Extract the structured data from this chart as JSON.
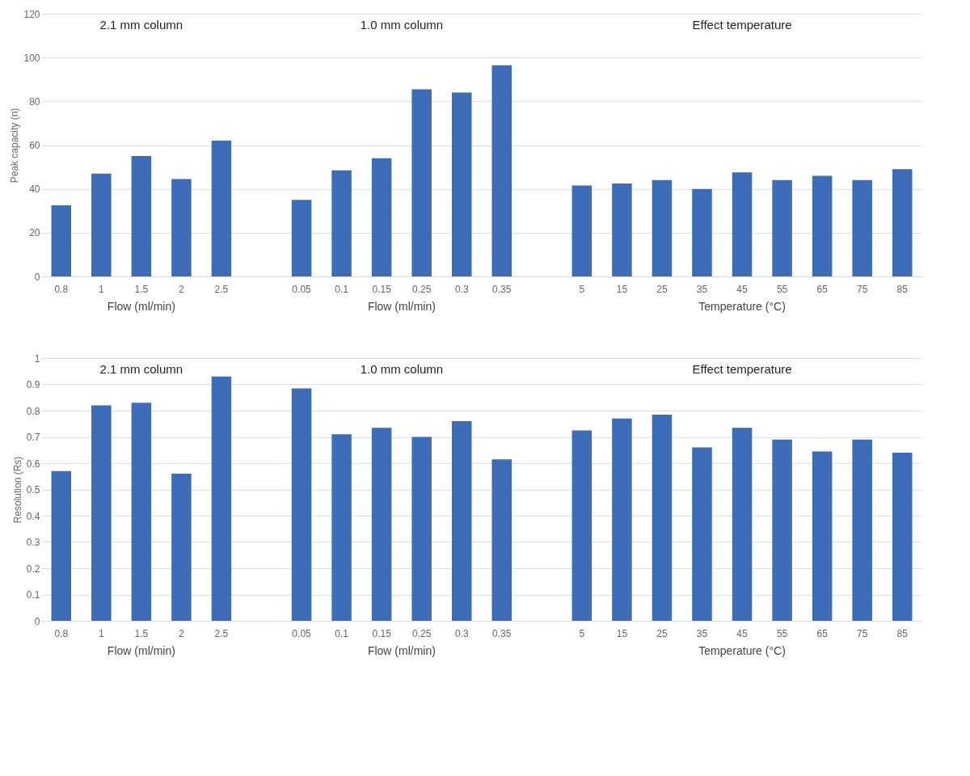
{
  "chart_data": [
    {
      "type": "bar",
      "ylabel": "Peak capacity (n)",
      "categories": [
        "0.8",
        "1",
        "1.5",
        "2",
        "2.5",
        null,
        "0.05",
        "0.1",
        "0.15",
        "0.25",
        "0.3",
        "0.35",
        null,
        "5",
        "15",
        "25",
        "35",
        "45",
        "55",
        "65",
        "75",
        "85"
      ],
      "values": [
        32.5,
        47,
        55,
        44.5,
        62,
        null,
        35,
        48.5,
        54,
        85.5,
        84,
        96.5,
        null,
        41.5,
        42.5,
        44,
        40,
        47.5,
        44,
        46,
        44,
        49
      ],
      "color": "#3d6cb9",
      "ylim": [
        0,
        120
      ],
      "yticks": [
        0,
        20,
        40,
        60,
        80,
        100,
        120
      ],
      "grid": "y",
      "annotations": [
        "2.1 mm column",
        "1.0 mm column",
        "Effect temperature",
        "Flow (ml/min)",
        "Flow (ml/min)",
        "Temperature (°C)"
      ]
    },
    {
      "type": "bar",
      "ylabel": "Resolution (Rs)",
      "categories": [
        "0.8",
        "1",
        "1.5",
        "2",
        "2.5",
        null,
        "0.05",
        "0.1",
        "0.15",
        "0.25",
        "0.3",
        "0.35",
        null,
        "5",
        "15",
        "25",
        "35",
        "45",
        "55",
        "65",
        "75",
        "85"
      ],
      "values": [
        0.57,
        0.82,
        0.83,
        0.56,
        0.93,
        null,
        0.885,
        0.71,
        0.735,
        0.7,
        0.76,
        0.615,
        null,
        0.725,
        0.77,
        0.785,
        0.66,
        0.735,
        0.69,
        0.645,
        0.69,
        0.64
      ],
      "color": "#3d6cb9",
      "ylim": [
        0,
        1
      ],
      "yticks": [
        0,
        0.1,
        0.2,
        0.3,
        0.4,
        0.5,
        0.6,
        0.7,
        0.8,
        0.9,
        1
      ],
      "grid": "y",
      "annotations": [
        "2.1 mm column",
        "1.0 mm column",
        "Effect temperature",
        "Flow (ml/min)",
        "Flow (ml/min)",
        "Temperature (°C)"
      ]
    }
  ]
}
